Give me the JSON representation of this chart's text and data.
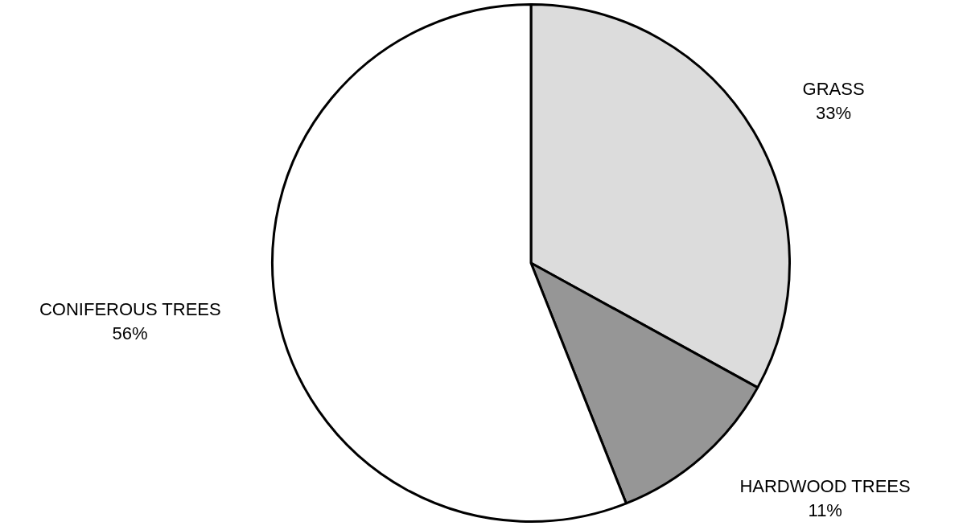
{
  "chart_data": {
    "type": "pie",
    "categories": [
      "GRASS",
      "HARDWOOD TREES",
      "CONIFEROUS TREES"
    ],
    "values": [
      33,
      11,
      56
    ],
    "value_labels": [
      "33%",
      "11%",
      "56%"
    ],
    "colors": [
      "#dcdcdc",
      "#969696",
      "#ffffff"
    ],
    "legend": false
  }
}
